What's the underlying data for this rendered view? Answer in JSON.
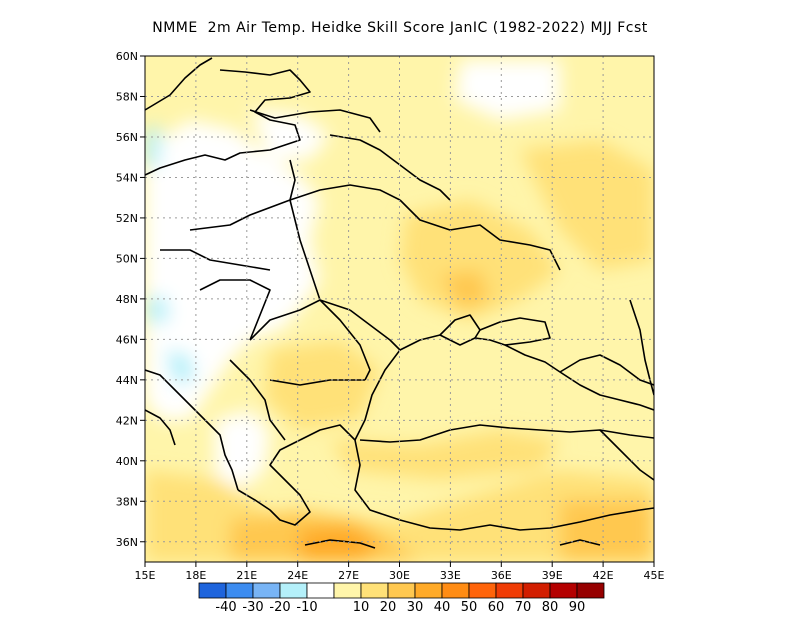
{
  "title": "NMME  2m Air Temp. Heidke Skill Score JanIC (1982-2022) MJJ Fcst",
  "map": {
    "lon_range": [
      15,
      45
    ],
    "lat_range": [
      35,
      60
    ],
    "lon_ticks": [
      {
        "value": 15,
        "label": "15E"
      },
      {
        "value": 18,
        "label": "18E"
      },
      {
        "value": 21,
        "label": "21E"
      },
      {
        "value": 24,
        "label": "24E"
      },
      {
        "value": 27,
        "label": "27E"
      },
      {
        "value": 30,
        "label": "30E"
      },
      {
        "value": 33,
        "label": "33E"
      },
      {
        "value": 36,
        "label": "36E"
      },
      {
        "value": 39,
        "label": "39E"
      },
      {
        "value": 42,
        "label": "42E"
      },
      {
        "value": 45,
        "label": "45E"
      }
    ],
    "lat_ticks": [
      {
        "value": 36,
        "label": "36N"
      },
      {
        "value": 38,
        "label": "38N"
      },
      {
        "value": 40,
        "label": "40N"
      },
      {
        "value": 42,
        "label": "42N"
      },
      {
        "value": 44,
        "label": "44N"
      },
      {
        "value": 46,
        "label": "46N"
      },
      {
        "value": 48,
        "label": "48N"
      },
      {
        "value": 50,
        "label": "50N"
      },
      {
        "value": 52,
        "label": "52N"
      },
      {
        "value": 54,
        "label": "54N"
      },
      {
        "value": 56,
        "label": "56N"
      },
      {
        "value": 58,
        "label": "58N"
      },
      {
        "value": 60,
        "label": "60N"
      }
    ],
    "grid": true
  },
  "colorbar": {
    "colors": [
      "#1e64dc",
      "#3c8cf0",
      "#78b4f5",
      "#b4f0fa",
      "#ffffff",
      "#fff5aa",
      "#ffe178",
      "#ffc850",
      "#ffaa28",
      "#ff8c14",
      "#ff640a",
      "#f03c05",
      "#d21e00",
      "#b40000",
      "#960000"
    ],
    "labels": [
      "-40",
      "-30",
      "-20",
      "-10",
      "10",
      "20",
      "30",
      "40",
      "50",
      "60",
      "70",
      "80",
      "90"
    ]
  }
}
